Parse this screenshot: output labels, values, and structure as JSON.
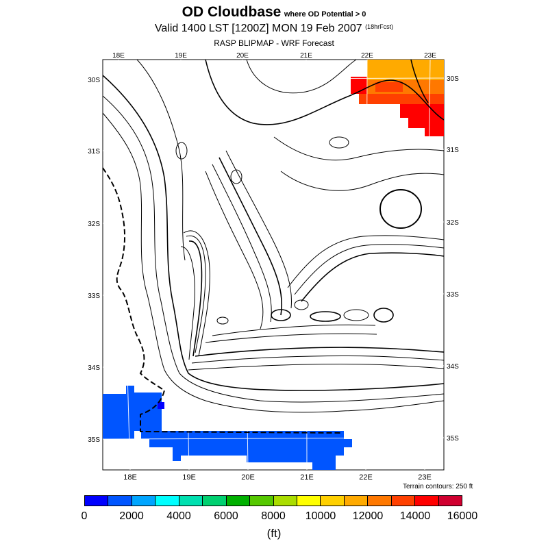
{
  "title": {
    "main": "OD Cloudbase",
    "qualifier": "where OD Potential > 0",
    "valid": "Valid 1400 LST [1200Z] MON 19 Feb 2007",
    "forecast_hours": "(18hrFcst)",
    "source": "RASP BLIPMAP - WRF Forecast"
  },
  "map": {
    "top_lon_labels": [
      "18E",
      "19E",
      "20E",
      "21E",
      "22E",
      "23E"
    ],
    "bottom_lon_labels": [
      "18E",
      "19E",
      "20E",
      "21E",
      "22E",
      "23E"
    ],
    "left_lat_labels": [
      "30S",
      "31S",
      "32S",
      "33S",
      "34S",
      "35S"
    ],
    "right_lat_labels": [
      "30S",
      "31S",
      "32S",
      "33S",
      "34S",
      "35S"
    ],
    "terrain_note": "Terrain contours: 250 ft"
  },
  "colorbar": {
    "colors": [
      "#0000ff",
      "#0055ff",
      "#00a5ff",
      "#00ffff",
      "#00e0b0",
      "#00d070",
      "#00b000",
      "#55c800",
      "#aadd00",
      "#ffff00",
      "#ffd000",
      "#ffaa00",
      "#ff7800",
      "#ff4000",
      "#ff0000",
      "#d00030"
    ],
    "tick_labels": [
      "0",
      "2000",
      "4000",
      "6000",
      "8000",
      "10000",
      "12000",
      "14000",
      "16000"
    ],
    "units": "(ft)"
  },
  "fields": {
    "low_cloudbase_color": "#0055ff",
    "high_cloudbase_colors": [
      "#ff0000",
      "#ff4000",
      "#ff7800",
      "#ffaa00"
    ]
  }
}
